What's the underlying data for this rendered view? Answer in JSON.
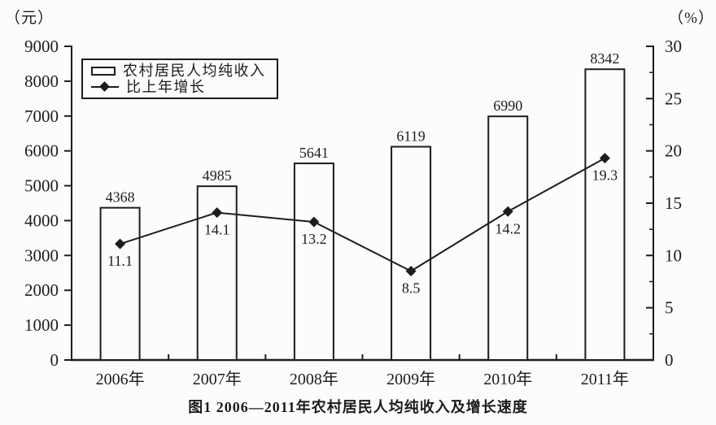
{
  "chart_data": {
    "type": "bar+line",
    "title": "图1  2006—2011年农村居民人均纯收入及增长速度",
    "categories": [
      "2006年",
      "2007年",
      "2008年",
      "2009年",
      "2010年",
      "2011年"
    ],
    "series": [
      {
        "name": "农村居民人均纯收入",
        "type": "bar",
        "axis": "left",
        "unit": "元",
        "marker": "open-bar",
        "values": [
          4368,
          4985,
          5641,
          6119,
          6990,
          8342
        ]
      },
      {
        "name": "比上年增长",
        "type": "line",
        "axis": "right",
        "unit": "%",
        "marker": "diamond",
        "values": [
          11.1,
          14.1,
          13.2,
          8.5,
          14.2,
          19.3
        ]
      }
    ],
    "left_axis": {
      "unit": "（元）",
      "min": 0,
      "max": 9000,
      "tick_step": 1000,
      "ticks": [
        9000,
        8000,
        7000,
        6000,
        5000,
        4000,
        3000,
        2000,
        1000,
        0
      ]
    },
    "right_axis": {
      "unit": "（%）",
      "min": 0,
      "max": 30,
      "tick_step": 5,
      "minor_tick_step": 2.5,
      "ticks": [
        30,
        25,
        20,
        15,
        10,
        5,
        0
      ]
    },
    "legend": {
      "position": "top-left-inside",
      "items": [
        {
          "label": "农村居民人均纯收入",
          "marker": "open-bar"
        },
        {
          "label": "比上年增长",
          "marker": "line-diamond"
        }
      ]
    },
    "grid": false,
    "colors": {
      "ink": "#1c1c1c",
      "bar_fill": "#fcfcfa",
      "paper": "#fcfcfa"
    }
  }
}
